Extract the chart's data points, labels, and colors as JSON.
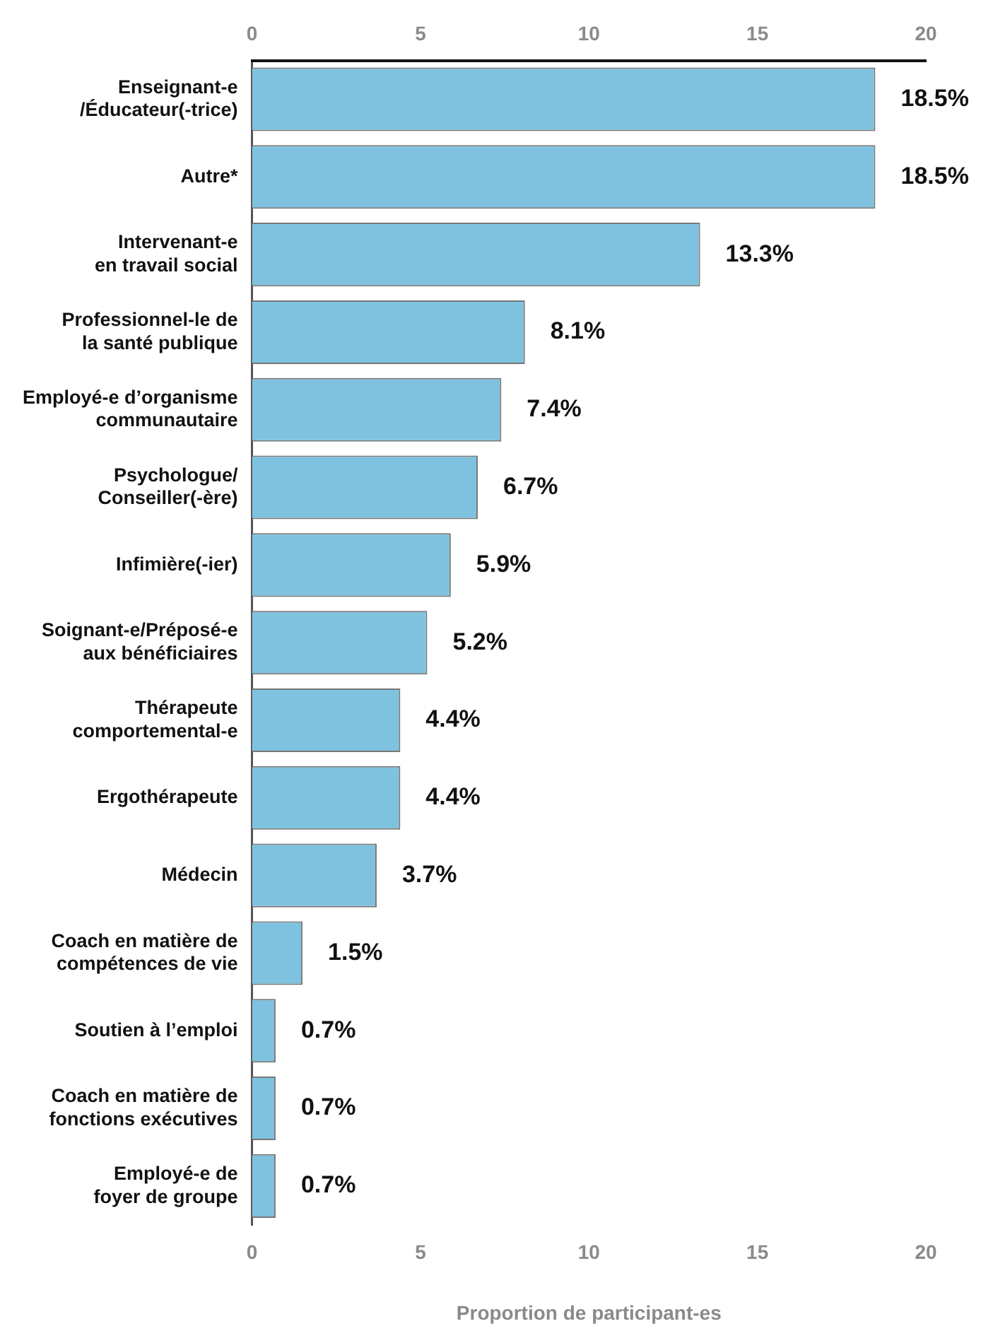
{
  "chart_data": {
    "type": "bar",
    "orientation": "horizontal",
    "xlabel": "Proportion de participant-es",
    "categories": [
      "Enseignant-e\n/Éducateur(-trice)",
      "Autre*",
      "Intervenant-e\nen travail social",
      "Professionnel-le de\nla santé publique",
      "Employé-e d’organisme\ncommunautaire",
      "Psychologue/\nConseiller(-ère)",
      "Infimière(-ier)",
      "Soignant-e/Préposé-e\naux bénéficiaires",
      "Thérapeute\ncomportemental-e",
      "Ergothérapeute",
      "Médecin",
      "Coach en matière de\ncompétences de vie",
      "Soutien à l’emploi",
      "Coach en matière de\nfonctions exécutives",
      "Employé-e de\nfoyer de groupe"
    ],
    "values": [
      18.5,
      18.5,
      13.3,
      8.1,
      7.4,
      6.7,
      5.9,
      5.2,
      4.4,
      4.4,
      3.7,
      1.5,
      0.7,
      0.7,
      0.7
    ],
    "value_labels": [
      "18.5%",
      "18.5%",
      "13.3%",
      "8.1%",
      "7.4%",
      "6.7%",
      "5.9%",
      "5.2%",
      "4.4%",
      "4.4%",
      "3.7%",
      "1.5%",
      "0.7%",
      "0.7%",
      "0.7%"
    ],
    "color": "#7fc2e0",
    "xlim": [
      0,
      20
    ],
    "xticks": [
      0,
      5,
      10,
      15,
      20
    ],
    "x2lim": [
      0,
      20
    ],
    "x2ticks": [
      0,
      5,
      10,
      15,
      20
    ],
    "grid": false,
    "legend": false
  }
}
